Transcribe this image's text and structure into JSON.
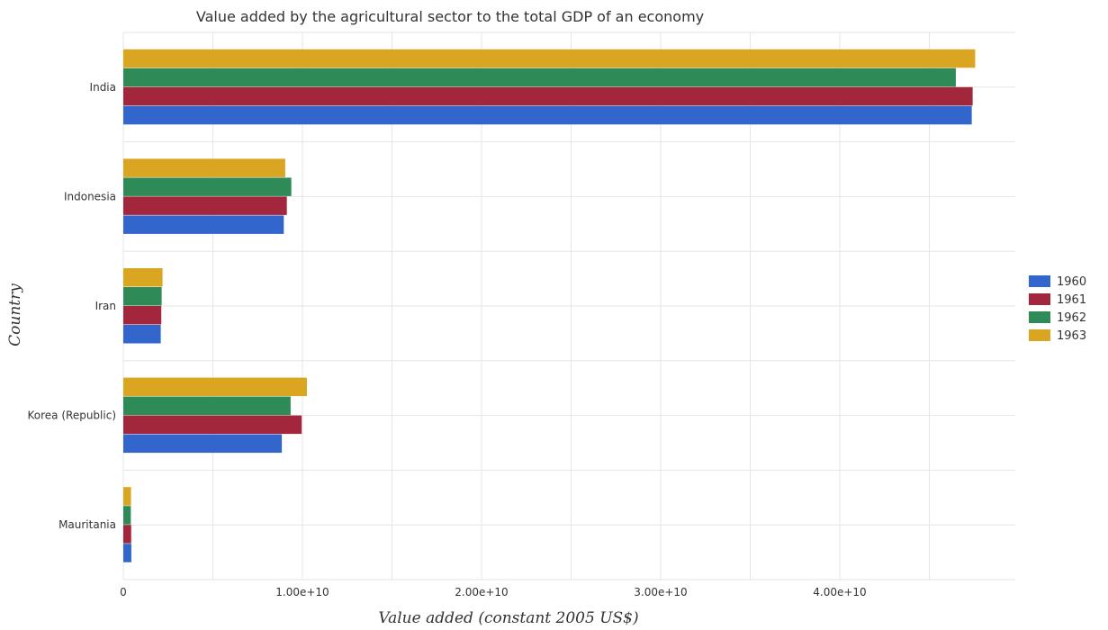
{
  "chart_data": {
    "type": "bar",
    "orientation": "horizontal",
    "title": "Value added by the agricultural sector to the total GDP of an economy",
    "xlabel": "Value added (constant 2005 US$)",
    "ylabel": "Country",
    "categories": [
      "India",
      "Indonesia",
      "Iran",
      "Korea (Republic)",
      "Mauritania"
    ],
    "series": [
      {
        "name": "1960",
        "color": "#3366cc",
        "values": [
          47370000000,
          8960000000,
          2090000000,
          8850000000,
          450000000
        ]
      },
      {
        "name": "1961",
        "color": "#a3273c",
        "values": [
          47420000000,
          9130000000,
          2120000000,
          9960000000,
          440000000
        ]
      },
      {
        "name": "1962",
        "color": "#2e8b57",
        "values": [
          46480000000,
          9380000000,
          2140000000,
          9340000000,
          420000000
        ]
      },
      {
        "name": "1963",
        "color": "#daa520",
        "values": [
          47560000000,
          9040000000,
          2190000000,
          10250000000,
          430000000
        ]
      }
    ],
    "x_ticks": [
      0,
      10000000000,
      20000000000,
      30000000000,
      40000000000
    ],
    "x_tick_labels": [
      "0",
      "1.00e+10",
      "2.00e+10",
      "3.00e+10",
      "4.00e+10"
    ],
    "xlim": [
      0,
      49800000000
    ],
    "grid": true,
    "legend_position": "right"
  }
}
